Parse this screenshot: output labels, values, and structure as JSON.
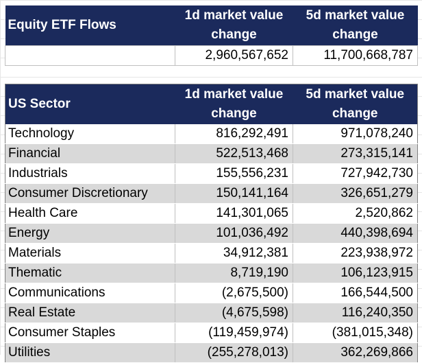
{
  "etf_flows": {
    "title": "Equity ETF Flows",
    "col1_header": "1d market value change",
    "col2_header": "5d market value change",
    "values": {
      "d1": "2,960,567,652",
      "d5": "11,700,668,787"
    }
  },
  "sector": {
    "title": "US Sector",
    "col1_header": "1d market value change",
    "col2_header": "5d market value change",
    "rows": [
      {
        "name": "Technology",
        "d1": "816,292,491",
        "d5": "971,078,240"
      },
      {
        "name": "Financial",
        "d1": "522,513,468",
        "d5": "273,315,141"
      },
      {
        "name": "Industrials",
        "d1": "155,556,231",
        "d5": "727,942,730"
      },
      {
        "name": "Consumer Discretionary",
        "d1": "150,141,164",
        "d5": "326,651,279"
      },
      {
        "name": "Health Care",
        "d1": "141,301,065",
        "d5": "2,520,862"
      },
      {
        "name": "Energy",
        "d1": "101,036,492",
        "d5": "440,398,694"
      },
      {
        "name": "Materials",
        "d1": "34,912,381",
        "d5": "223,938,972"
      },
      {
        "name": "Thematic",
        "d1": "8,719,190",
        "d5": "106,123,915"
      },
      {
        "name": "Communications",
        "d1": "(2,675,500)",
        "d5": "166,544,500"
      },
      {
        "name": "Real Estate",
        "d1": "(4,675,598)",
        "d5": "116,240,350"
      },
      {
        "name": "Consumer Staples",
        "d1": "(119,459,974)",
        "d5": "(381,015,348)"
      },
      {
        "name": "Utilities",
        "d1": "(255,278,013)",
        "d5": "362,269,866"
      }
    ]
  },
  "colors": {
    "header_bg": "#1b2a5c",
    "header_text": "#ffffff",
    "band_shade": "#d9d9d9"
  }
}
